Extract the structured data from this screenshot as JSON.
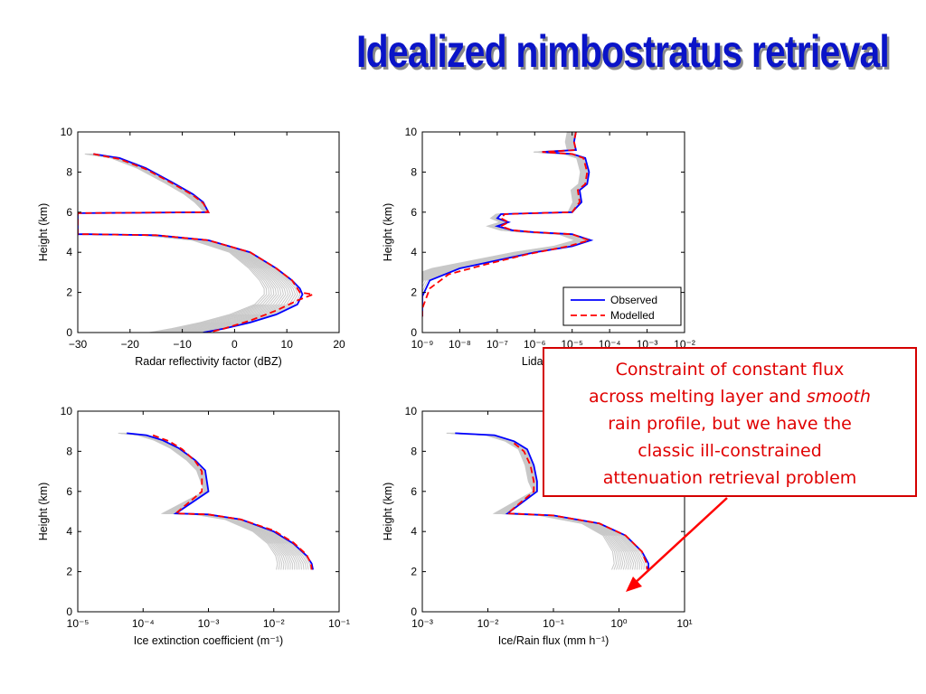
{
  "title": "Idealized nimbostratus retrieval",
  "callout": {
    "line1": "Constraint of constant flux",
    "line2a": "across melting layer and ",
    "line2b": "smooth",
    "line3": "rain profile, but we have the",
    "line4": "classic ill-constrained",
    "line5": "attenuation retrieval problem"
  },
  "legend": {
    "observed": "Observed",
    "modelled": "Modelled"
  },
  "colors": {
    "observed": "#0000ff",
    "modelled": "#ff0000",
    "ensemble": "#c8c8c8",
    "callout": "#e00000",
    "title": "#0a14c8"
  },
  "chart_data": [
    {
      "type": "line",
      "xlabel": "Radar reflectivity factor (dBZ)",
      "ylabel": "Height (km)",
      "xscale": "linear",
      "xlim": [
        -30,
        20
      ],
      "xticks": [
        "−30",
        "−20",
        "−10",
        "0",
        "10",
        "20"
      ],
      "ylim": [
        0,
        10
      ],
      "yticks": [
        "0",
        "2",
        "4",
        "6",
        "8",
        "10"
      ],
      "series": [
        {
          "name": "Observed",
          "points": [
            [
              -27,
              8.9
            ],
            [
              -22,
              8.7
            ],
            [
              -17,
              8.2
            ],
            [
              -12,
              7.5
            ],
            [
              -8,
              6.9
            ],
            [
              -6,
              6.5
            ],
            [
              -5,
              6.0
            ],
            [
              -30,
              5.95
            ],
            [
              -30,
              4.9
            ],
            [
              -28,
              4.9
            ],
            [
              -15,
              4.85
            ],
            [
              -5,
              4.6
            ],
            [
              3,
              4.0
            ],
            [
              8,
              3.2
            ],
            [
              11,
              2.6
            ],
            [
              12.5,
              2.2
            ],
            [
              13,
              1.9
            ],
            [
              12,
              1.4
            ],
            [
              8,
              0.9
            ],
            [
              3,
              0.5
            ],
            [
              -2,
              0.2
            ],
            [
              -6,
              0.0
            ]
          ]
        },
        {
          "name": "Modelled",
          "points": [
            [
              -27,
              8.9
            ],
            [
              -22,
              8.65
            ],
            [
              -17,
              8.15
            ],
            [
              -12,
              7.45
            ],
            [
              -8,
              6.85
            ],
            [
              -6,
              6.45
            ],
            [
              -5,
              6.0
            ],
            [
              -30,
              5.95
            ],
            [
              -30,
              4.9
            ],
            [
              -28,
              4.9
            ],
            [
              -15,
              4.85
            ],
            [
              -5,
              4.6
            ],
            [
              3,
              4.0
            ],
            [
              8,
              3.2
            ],
            [
              11,
              2.6
            ],
            [
              12,
              2.2
            ],
            [
              12.5,
              2.0
            ],
            [
              15,
              1.9
            ],
            [
              12,
              1.6
            ],
            [
              8,
              1.1
            ],
            [
              3,
              0.6
            ],
            [
              -2,
              0.2
            ],
            [
              -5,
              0.0
            ]
          ]
        }
      ]
    },
    {
      "type": "line",
      "xlabel": "Lidar backsc",
      "ylabel": "Height (km)",
      "xscale": "log",
      "xlim": [
        -9,
        -2
      ],
      "xticks": [
        "10⁻⁹",
        "10⁻⁸",
        "10⁻⁷",
        "10⁻⁶",
        "10⁻⁵",
        "10⁻⁴",
        "10⁻³",
        "10⁻²"
      ],
      "ylim": [
        0,
        10
      ],
      "yticks": [
        "0",
        "2",
        "4",
        "6",
        "8",
        "10"
      ],
      "legend": "bottom-right",
      "series": [
        {
          "name": "Observed",
          "points": [
            [
              -4.9,
              10
            ],
            [
              -4.95,
              9.5
            ],
            [
              -4.9,
              9.1
            ],
            [
              -5.8,
              9.0
            ],
            [
              -5.0,
              8.9
            ],
            [
              -4.65,
              8.7
            ],
            [
              -4.55,
              8.0
            ],
            [
              -4.6,
              7.4
            ],
            [
              -4.8,
              7.1
            ],
            [
              -4.75,
              6.5
            ],
            [
              -5.0,
              6.0
            ],
            [
              -6.0,
              5.95
            ],
            [
              -6.9,
              5.9
            ],
            [
              -7.0,
              5.7
            ],
            [
              -6.7,
              5.5
            ],
            [
              -7.0,
              5.3
            ],
            [
              -6.6,
              5.1
            ],
            [
              -6.0,
              5.0
            ],
            [
              -5.0,
              4.9
            ],
            [
              -4.5,
              4.6
            ],
            [
              -5.0,
              4.3
            ],
            [
              -6.0,
              4.0
            ],
            [
              -7.0,
              3.6
            ],
            [
              -8.0,
              3.2
            ],
            [
              -8.8,
              2.6
            ],
            [
              -9.0,
              1.8
            ],
            [
              -9.0,
              0.8
            ]
          ]
        },
        {
          "name": "Modelled",
          "points": [
            [
              -4.9,
              10
            ],
            [
              -4.95,
              9.5
            ],
            [
              -4.9,
              9.1
            ],
            [
              -5.8,
              9.0
            ],
            [
              -5.0,
              8.9
            ],
            [
              -4.7,
              8.7
            ],
            [
              -4.6,
              8.0
            ],
            [
              -4.65,
              7.4
            ],
            [
              -4.85,
              7.1
            ],
            [
              -4.8,
              6.5
            ],
            [
              -5.0,
              6.0
            ],
            [
              -6.0,
              5.95
            ],
            [
              -6.8,
              5.9
            ],
            [
              -6.9,
              5.7
            ],
            [
              -6.7,
              5.5
            ],
            [
              -6.9,
              5.3
            ],
            [
              -6.6,
              5.1
            ],
            [
              -6.0,
              5.0
            ],
            [
              -5.0,
              4.9
            ],
            [
              -4.55,
              4.6
            ],
            [
              -5.1,
              4.3
            ],
            [
              -6.2,
              3.9
            ],
            [
              -7.3,
              3.4
            ],
            [
              -8.3,
              2.9
            ],
            [
              -8.8,
              2.2
            ],
            [
              -9.0,
              1.2
            ],
            [
              -9.0,
              0.8
            ]
          ]
        }
      ]
    },
    {
      "type": "line",
      "xlabel": "Ice extinction coefficient (m⁻¹)",
      "ylabel": "Height (km)",
      "xscale": "log",
      "xlim": [
        -5,
        -1
      ],
      "xticks": [
        "10⁻⁵",
        "10⁻⁴",
        "10⁻³",
        "10⁻²",
        "10⁻¹"
      ],
      "ylim": [
        0,
        10
      ],
      "yticks": [
        "0",
        "2",
        "4",
        "6",
        "8",
        "10"
      ],
      "series": [
        {
          "name": "Observed",
          "points": [
            [
              -4.25,
              8.9
            ],
            [
              -3.95,
              8.8
            ],
            [
              -3.7,
              8.55
            ],
            [
              -3.45,
              8.15
            ],
            [
              -3.2,
              7.55
            ],
            [
              -3.05,
              7.05
            ],
            [
              -3.0,
              6.0
            ],
            [
              -3.5,
              4.9
            ],
            [
              -3.0,
              4.85
            ],
            [
              -2.5,
              4.6
            ],
            [
              -2.0,
              4.0
            ],
            [
              -1.7,
              3.4
            ],
            [
              -1.5,
              2.8
            ],
            [
              -1.42,
              2.4
            ],
            [
              -1.4,
              2.1
            ]
          ]
        },
        {
          "name": "Modelled",
          "points": [
            [
              -3.85,
              8.8
            ],
            [
              -3.6,
              8.5
            ],
            [
              -3.4,
              8.1
            ],
            [
              -3.2,
              7.5
            ],
            [
              -3.1,
              7.0
            ],
            [
              -3.1,
              6.0
            ],
            [
              -3.5,
              4.9
            ],
            [
              -3.0,
              4.85
            ],
            [
              -2.5,
              4.6
            ],
            [
              -2.0,
              4.05
            ],
            [
              -1.7,
              3.45
            ],
            [
              -1.5,
              2.85
            ],
            [
              -1.43,
              2.4
            ],
            [
              -1.42,
              2.1
            ]
          ]
        }
      ]
    },
    {
      "type": "line",
      "xlabel": "Ice/Rain flux (mm h⁻¹)",
      "ylabel": "Height (km)",
      "xscale": "log",
      "xlim": [
        -3,
        1
      ],
      "xticks": [
        "10⁻³",
        "10⁻²",
        "10⁻¹",
        "10⁰",
        "10¹"
      ],
      "ylim": [
        0,
        10
      ],
      "yticks": [
        "0",
        "2",
        "4",
        "6",
        "8",
        "10"
      ],
      "series": [
        {
          "name": "Observed",
          "points": [
            [
              -2.5,
              8.9
            ],
            [
              -1.9,
              8.8
            ],
            [
              -1.6,
              8.5
            ],
            [
              -1.4,
              8.1
            ],
            [
              -1.3,
              7.3
            ],
            [
              -1.25,
              6.5
            ],
            [
              -1.25,
              6.0
            ],
            [
              -1.7,
              4.9
            ],
            [
              -1.0,
              4.8
            ],
            [
              -0.3,
              4.4
            ],
            [
              0.1,
              3.8
            ],
            [
              0.35,
              3.0
            ],
            [
              0.45,
              2.4
            ],
            [
              0.45,
              2.1
            ]
          ]
        },
        {
          "name": "Modelled",
          "points": [
            [
              -1.6,
              8.4
            ],
            [
              -1.45,
              8.0
            ],
            [
              -1.35,
              7.3
            ],
            [
              -1.3,
              6.5
            ],
            [
              -1.3,
              6.0
            ],
            [
              -1.7,
              4.9
            ],
            [
              -1.0,
              4.8
            ],
            [
              -0.3,
              4.4
            ],
            [
              0.1,
              3.8
            ],
            [
              0.35,
              3.0
            ],
            [
              0.42,
              2.4
            ],
            [
              0.43,
              2.1
            ]
          ]
        }
      ]
    }
  ]
}
